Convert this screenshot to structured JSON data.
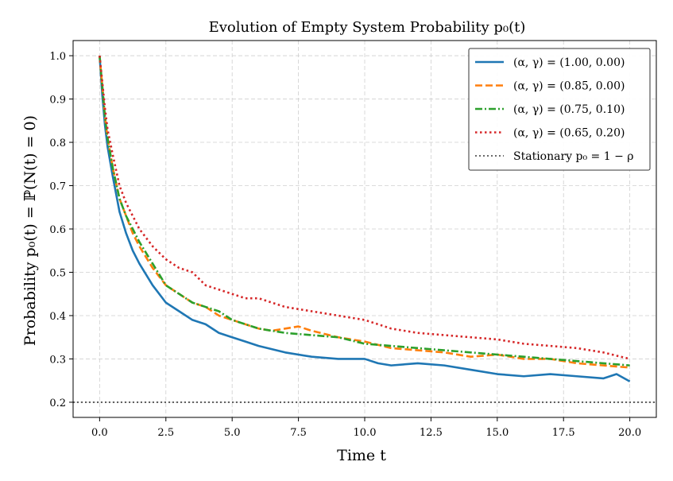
{
  "chart_data": {
    "type": "line",
    "title": "Evolution of Empty System Probability p₀(t)",
    "xlabel": "Time t",
    "ylabel": "Probability p₀(t) = ℙ(N(t) = 0)",
    "xlim": [
      -1.0,
      21.0
    ],
    "ylim": [
      0.165,
      1.035
    ],
    "xticks": [
      0.0,
      2.5,
      5.0,
      7.5,
      10.0,
      12.5,
      15.0,
      17.5,
      20.0
    ],
    "xtick_labels": [
      "0.0",
      "2.5",
      "5.0",
      "7.5",
      "10.0",
      "12.5",
      "15.0",
      "17.5",
      "20.0"
    ],
    "yticks": [
      0.2,
      0.3,
      0.4,
      0.5,
      0.6,
      0.7,
      0.8,
      0.9,
      1.0
    ],
    "ytick_labels": [
      "0.2",
      "0.3",
      "0.4",
      "0.5",
      "0.6",
      "0.7",
      "0.8",
      "0.9",
      "1.0"
    ],
    "grid": true,
    "legend_position": "top-right",
    "series": [
      {
        "name": "(α, γ) = (1.00, 0.00)",
        "color": "#1f77b4",
        "style": "solid",
        "x": [
          0,
          0.1,
          0.2,
          0.3,
          0.5,
          0.75,
          1.0,
          1.25,
          1.5,
          2.0,
          2.5,
          3.0,
          3.5,
          4.0,
          4.5,
          5.0,
          5.5,
          6.0,
          7.0,
          8.0,
          9.0,
          10.0,
          10.5,
          11.0,
          12.0,
          13.0,
          14.0,
          15.0,
          16.0,
          17.0,
          18.0,
          19.0,
          19.5,
          20.0
        ],
        "y": [
          1.0,
          0.91,
          0.84,
          0.79,
          0.72,
          0.64,
          0.59,
          0.55,
          0.52,
          0.47,
          0.43,
          0.41,
          0.39,
          0.38,
          0.36,
          0.35,
          0.34,
          0.33,
          0.315,
          0.305,
          0.3,
          0.3,
          0.29,
          0.285,
          0.29,
          0.285,
          0.275,
          0.265,
          0.26,
          0.265,
          0.26,
          0.255,
          0.265,
          0.248
        ]
      },
      {
        "name": "(α, γ) = (0.85, 0.00)",
        "color": "#ff7f0e",
        "style": "dashed",
        "x": [
          0,
          0.1,
          0.2,
          0.3,
          0.5,
          0.75,
          1.0,
          1.25,
          1.5,
          2.0,
          2.5,
          3.0,
          3.5,
          4.0,
          4.5,
          5.0,
          5.5,
          6.0,
          6.5,
          7.0,
          7.5,
          8.0,
          9.0,
          10.0,
          11.0,
          12.0,
          13.0,
          14.0,
          15.0,
          16.0,
          17.0,
          18.0,
          19.0,
          20.0
        ],
        "y": [
          1.0,
          0.93,
          0.86,
          0.81,
          0.74,
          0.67,
          0.63,
          0.59,
          0.56,
          0.51,
          0.47,
          0.45,
          0.43,
          0.42,
          0.4,
          0.39,
          0.38,
          0.37,
          0.365,
          0.37,
          0.375,
          0.365,
          0.35,
          0.34,
          0.325,
          0.32,
          0.315,
          0.305,
          0.31,
          0.3,
          0.3,
          0.29,
          0.285,
          0.28
        ]
      },
      {
        "name": "(α, γ) = (0.75, 0.10)",
        "color": "#2ca02c",
        "style": "dashdot",
        "x": [
          0,
          0.1,
          0.2,
          0.3,
          0.5,
          0.75,
          1.0,
          1.25,
          1.5,
          2.0,
          2.5,
          3.0,
          3.5,
          4.0,
          4.5,
          5.0,
          5.5,
          6.0,
          7.0,
          8.0,
          9.0,
          10.0,
          11.0,
          12.0,
          13.0,
          14.0,
          15.0,
          16.0,
          17.0,
          18.0,
          19.0,
          20.0
        ],
        "y": [
          1.0,
          0.93,
          0.86,
          0.81,
          0.74,
          0.67,
          0.63,
          0.6,
          0.57,
          0.52,
          0.47,
          0.45,
          0.43,
          0.42,
          0.41,
          0.39,
          0.38,
          0.37,
          0.36,
          0.355,
          0.35,
          0.335,
          0.33,
          0.325,
          0.32,
          0.315,
          0.31,
          0.305,
          0.3,
          0.295,
          0.29,
          0.285
        ]
      },
      {
        "name": "(α, γ) = (0.65, 0.20)",
        "color": "#d62728",
        "style": "dotted",
        "x": [
          0,
          0.1,
          0.2,
          0.3,
          0.5,
          0.75,
          1.0,
          1.25,
          1.5,
          2.0,
          2.5,
          3.0,
          3.5,
          4.0,
          4.5,
          5.0,
          5.5,
          6.0,
          6.5,
          7.0,
          7.5,
          8.0,
          9.0,
          10.0,
          11.0,
          12.0,
          13.0,
          14.0,
          15.0,
          16.0,
          17.0,
          18.0,
          19.0,
          20.0
        ],
        "y": [
          1.0,
          0.94,
          0.88,
          0.83,
          0.77,
          0.7,
          0.66,
          0.63,
          0.6,
          0.56,
          0.53,
          0.51,
          0.5,
          0.47,
          0.46,
          0.45,
          0.44,
          0.44,
          0.43,
          0.42,
          0.415,
          0.41,
          0.4,
          0.39,
          0.37,
          0.36,
          0.355,
          0.35,
          0.345,
          0.335,
          0.33,
          0.325,
          0.315,
          0.3
        ]
      },
      {
        "name": "Stationary p₀ = 1 − ρ",
        "color": "#555555",
        "style": "dotted-reference",
        "x": [
          -1.0,
          21.0
        ],
        "y": [
          0.2,
          0.2
        ]
      }
    ]
  }
}
